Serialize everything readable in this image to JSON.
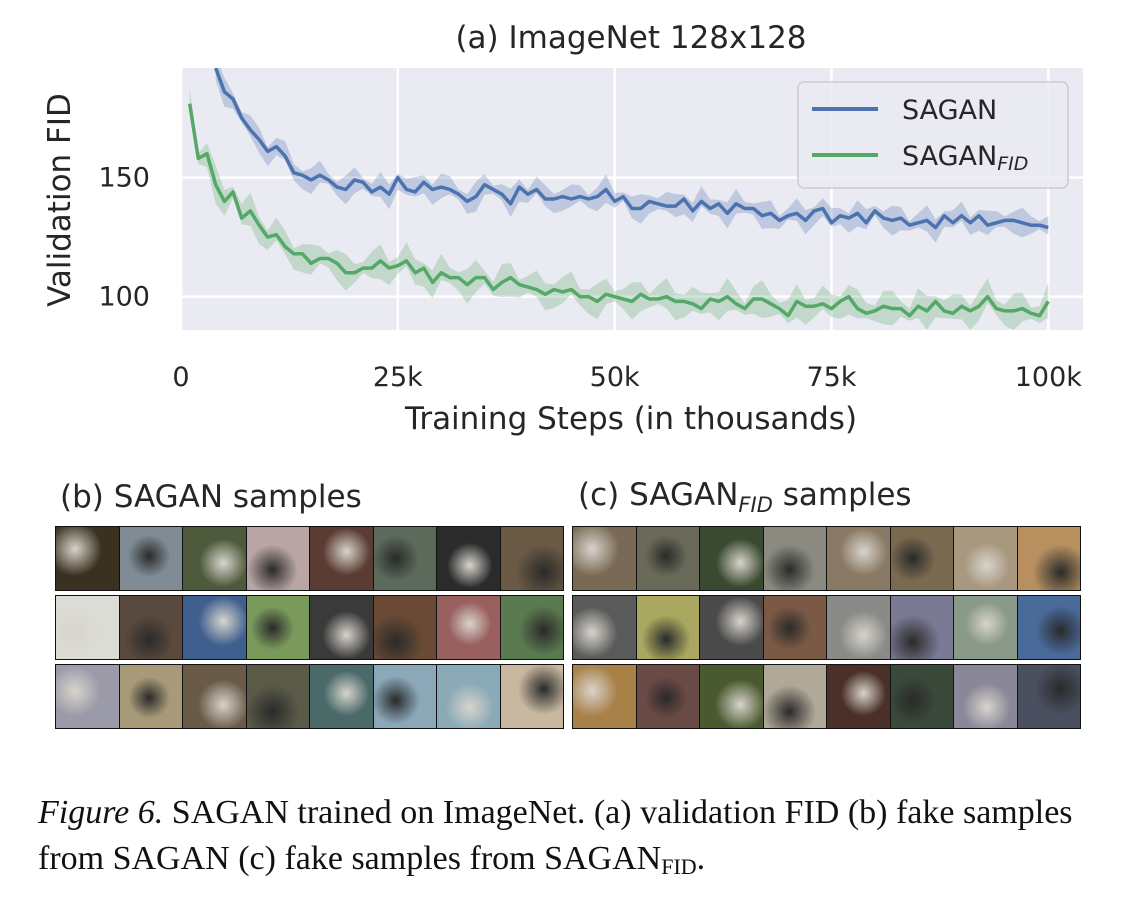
{
  "figure": {
    "panel_a_title": "(a) ImageNet 128x128",
    "panel_b_title": "(b) SAGAN samples",
    "panel_c_title_main": "(c) SAGAN",
    "panel_c_title_sub": "FID",
    "panel_c_title_tail": " samples",
    "caption_label": "Figure 6.",
    "caption_text": " SAGAN trained on ImageNet. (a) validation FID (b) fake samples from SAGAN (c) fake samples from SAGAN",
    "caption_sub": "FID",
    "caption_end": "."
  },
  "sample_colors_b": [
    [
      "#3a3120",
      "#7f8c95",
      "#4d5a3b",
      "#b9a6a4",
      "#5a3c33",
      "#5b6a5a",
      "#2b2b2b",
      "#6a5a45"
    ],
    [
      "#dcdcd6",
      "#5a4a3e",
      "#3f5f8f",
      "#7a9a5c",
      "#3a3a3a",
      "#6a4a35",
      "#9a6060",
      "#5a7a50"
    ],
    [
      "#9a9aa8",
      "#a89a78",
      "#6a5a48",
      "#5a5a48",
      "#4a6a6a",
      "#8aa8b8",
      "#8aaab8",
      "#c8b8a0"
    ]
  ],
  "sample_colors_c": [
    [
      "#7a6a55",
      "#6a6a5a",
      "#3a4a30",
      "#8a8a80",
      "#8a7a65",
      "#7a6a50",
      "#a89880",
      "#b89060"
    ],
    [
      "#5a5a5a",
      "#aaa860",
      "#4a4a4a",
      "#7a5a45",
      "#8a8a88",
      "#7a7a95",
      "#8a9a88",
      "#4a6a9a"
    ],
    [
      "#a88048",
      "#6a4a45",
      "#4a5a30",
      "#b0a898",
      "#4a3028",
      "#3a4a3a",
      "#8a8898",
      "#4a5060"
    ]
  ],
  "chart_data": {
    "type": "line",
    "title": "(a) ImageNet 128x128",
    "xlabel": "Training Steps (in thousands)",
    "ylabel": "Validation FID",
    "xlim": [
      0,
      104
    ],
    "ylim": [
      86,
      196
    ],
    "xticks": [
      0,
      25,
      50,
      75,
      100
    ],
    "xtick_labels": [
      "0",
      "25k",
      "50k",
      "75k",
      "100k"
    ],
    "yticks": [
      100,
      150
    ],
    "ytick_labels": [
      "100",
      "150"
    ],
    "grid": true,
    "legend_position": "top-right",
    "x": [
      1,
      2,
      3,
      4,
      5,
      6,
      7,
      8,
      9,
      10,
      11,
      12,
      13,
      14,
      15,
      16,
      17,
      18,
      19,
      20,
      21,
      22,
      23,
      24,
      25,
      26,
      27,
      28,
      29,
      30,
      31,
      32,
      33,
      34,
      35,
      36,
      37,
      38,
      39,
      40,
      41,
      42,
      43,
      44,
      45,
      46,
      47,
      48,
      49,
      50,
      51,
      52,
      53,
      54,
      55,
      56,
      57,
      58,
      59,
      60,
      61,
      62,
      63,
      64,
      65,
      66,
      67,
      68,
      69,
      70,
      71,
      72,
      73,
      74,
      75,
      76,
      77,
      78,
      79,
      80,
      81,
      82,
      83,
      84,
      85,
      86,
      87,
      88,
      89,
      90,
      91,
      92,
      93,
      94,
      95,
      96,
      97,
      98,
      99,
      100
    ],
    "series": [
      {
        "name": "SAGAN",
        "legend_main": "SAGAN",
        "legend_sub": "",
        "color": "#4c72b0",
        "band": 4,
        "values": [
          null,
          null,
          null,
          196,
          186,
          183,
          175,
          170,
          166,
          161,
          163,
          159,
          152,
          151,
          149,
          151,
          149,
          146,
          145,
          149,
          148,
          144,
          146,
          143,
          150,
          145,
          144,
          148,
          145,
          146,
          145,
          143,
          140,
          142,
          147,
          145,
          143,
          139,
          146,
          143,
          145,
          141,
          141,
          142,
          141,
          142,
          141,
          142,
          145,
          140,
          142,
          137,
          137,
          140,
          139,
          138,
          138,
          141,
          136,
          140,
          137,
          139,
          135,
          139,
          137,
          137,
          134,
          135,
          132,
          134,
          135,
          132,
          136,
          137,
          131,
          134,
          133,
          135,
          131,
          136,
          133,
          132,
          133,
          130,
          131,
          132,
          129,
          134,
          131,
          134,
          131,
          134,
          130,
          131,
          132,
          132,
          131,
          130,
          130,
          129
        ]
      },
      {
        "name": "SAGAN_FID",
        "legend_main": "SAGAN",
        "legend_sub": "FID",
        "color": "#55a868",
        "band": 5,
        "values": [
          181,
          158,
          160,
          147,
          140,
          144,
          133,
          136,
          130,
          125,
          126,
          121,
          118,
          118,
          114,
          116,
          116,
          114,
          110,
          110,
          112,
          112,
          115,
          112,
          113,
          115,
          110,
          112,
          106,
          110,
          108,
          108,
          105,
          108,
          108,
          103,
          106,
          108,
          105,
          104,
          103,
          101,
          103,
          102,
          103,
          100,
          100,
          98,
          101,
          100,
          99,
          98,
          101,
          99,
          99,
          100,
          98,
          98,
          97,
          95,
          99,
          98,
          100,
          97,
          95,
          99,
          99,
          97,
          95,
          92,
          98,
          96,
          96,
          97,
          95,
          98,
          100,
          95,
          93,
          94,
          96,
          95,
          95,
          92,
          96,
          94,
          98,
          94,
          93,
          96,
          94,
          96,
          100,
          95,
          94,
          94,
          95,
          93,
          92,
          98
        ]
      }
    ]
  }
}
